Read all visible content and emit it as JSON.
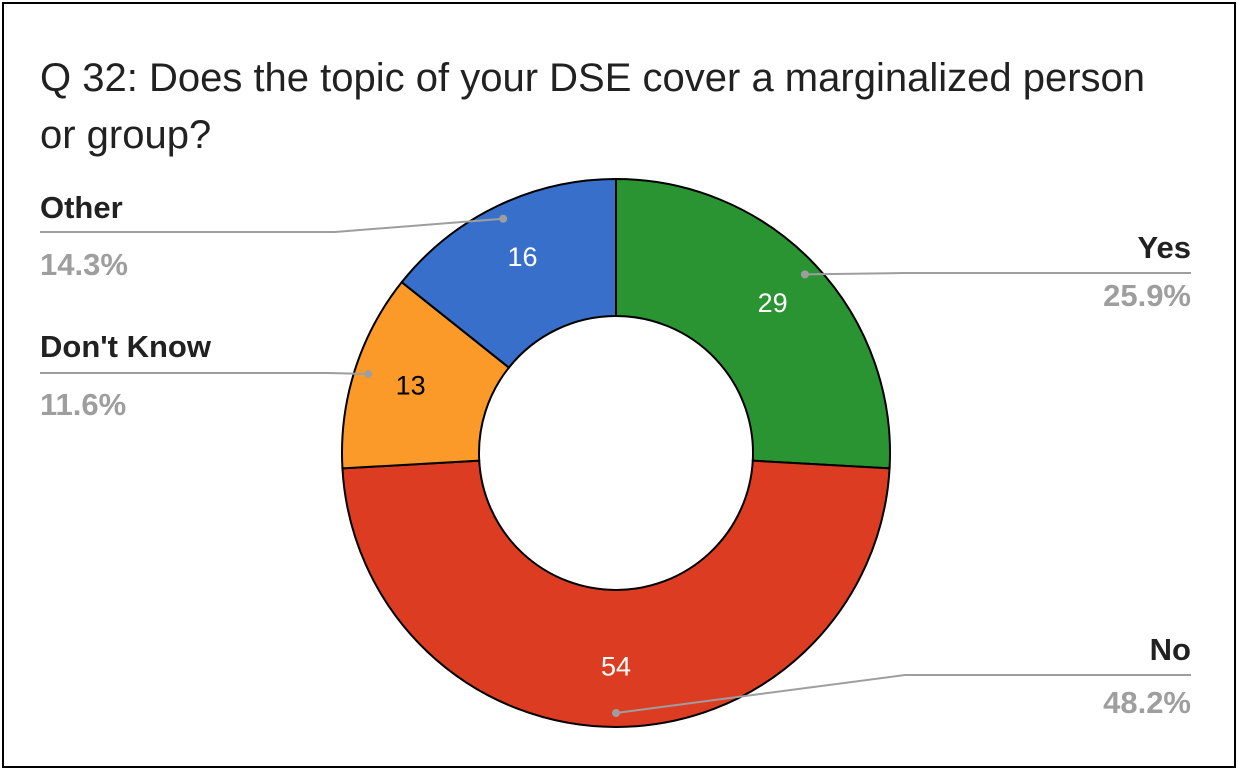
{
  "chart_data": {
    "type": "pie",
    "donut": true,
    "title": "Q 32: Does the topic of your DSE cover a marginalized person or group?",
    "slices": [
      {
        "label": "Yes",
        "value": 29,
        "percent": "25.9%",
        "color": "#2a9433",
        "text_color": "#ffffff"
      },
      {
        "label": "No",
        "value": 54,
        "percent": "48.2%",
        "color": "#dc3c21",
        "text_color": "#ffffff"
      },
      {
        "label": "Don't Know",
        "value": 13,
        "percent": "11.6%",
        "color": "#fb9a28",
        "text_color": "#000000"
      },
      {
        "label": "Other",
        "value": 16,
        "percent": "14.3%",
        "color": "#386fca",
        "text_color": "#ffffff"
      }
    ],
    "legend": "callout labels with leader lines"
  }
}
